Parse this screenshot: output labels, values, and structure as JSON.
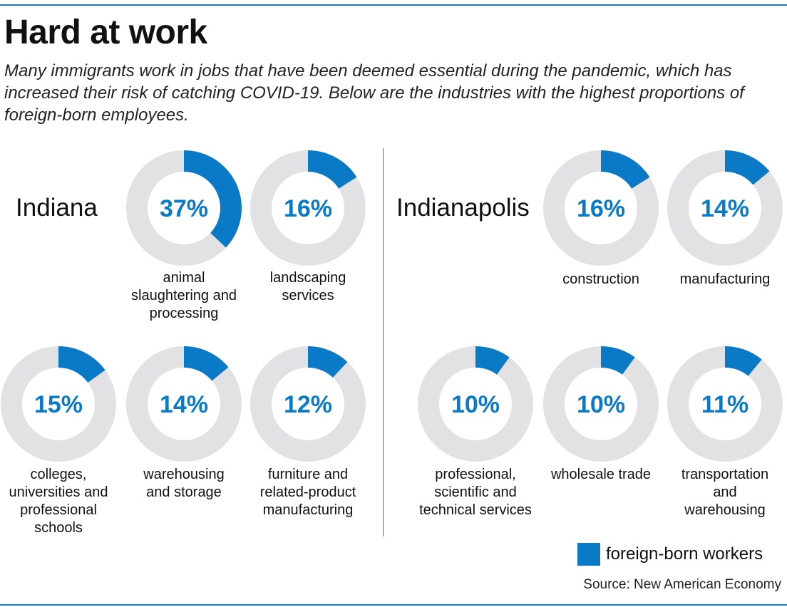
{
  "title": "Hard at work",
  "subtitle": "Many immigrants work in jobs that have been deemed essential during the pandemic, which has increased their risk of catching COVID-19. Below are the industries with the highest proportions of foreign-born employees.",
  "colors": {
    "accent": "#0b7ac6",
    "track": "#e2e2e4",
    "rule": "#1a7fc1"
  },
  "legend": {
    "label": "foreign-born workers"
  },
  "source": "Source: New American Economy",
  "chart_data": [
    {
      "type": "pie",
      "region": "Indiana",
      "categories": [
        "animal slaughtering and processing",
        "landscaping services",
        "colleges, universities and professional schools",
        "warehousing and storage",
        "furniture and related-product manufacturing"
      ],
      "values": [
        37,
        16,
        15,
        14,
        12
      ],
      "labels": [
        "37%",
        "16%",
        "15%",
        "14%",
        "12%"
      ],
      "unit": "%"
    },
    {
      "type": "pie",
      "region": "Indianapolis",
      "categories": [
        "construction",
        "manufacturing",
        "professional, scientific and technical services",
        "wholesale trade",
        "transportation and warehousing"
      ],
      "values": [
        16,
        14,
        10,
        10,
        11
      ],
      "labels": [
        "16%",
        "14%",
        "10%",
        "10%",
        "11%"
      ],
      "unit": "%"
    }
  ],
  "display_categories": {
    "indiana": [
      "animal\nslaughtering and\nprocessing",
      "landscaping\nservices",
      "colleges,\nuniversities and\nprofessional\nschools",
      "warehousing\nand storage",
      "furniture and\nrelated-product\nmanufacturing"
    ],
    "indianapolis": [
      "construction",
      "manufacturing",
      "professional,\nscientific and\ntechnical services",
      "wholesale trade",
      "transportation\nand\nwarehousing"
    ]
  }
}
